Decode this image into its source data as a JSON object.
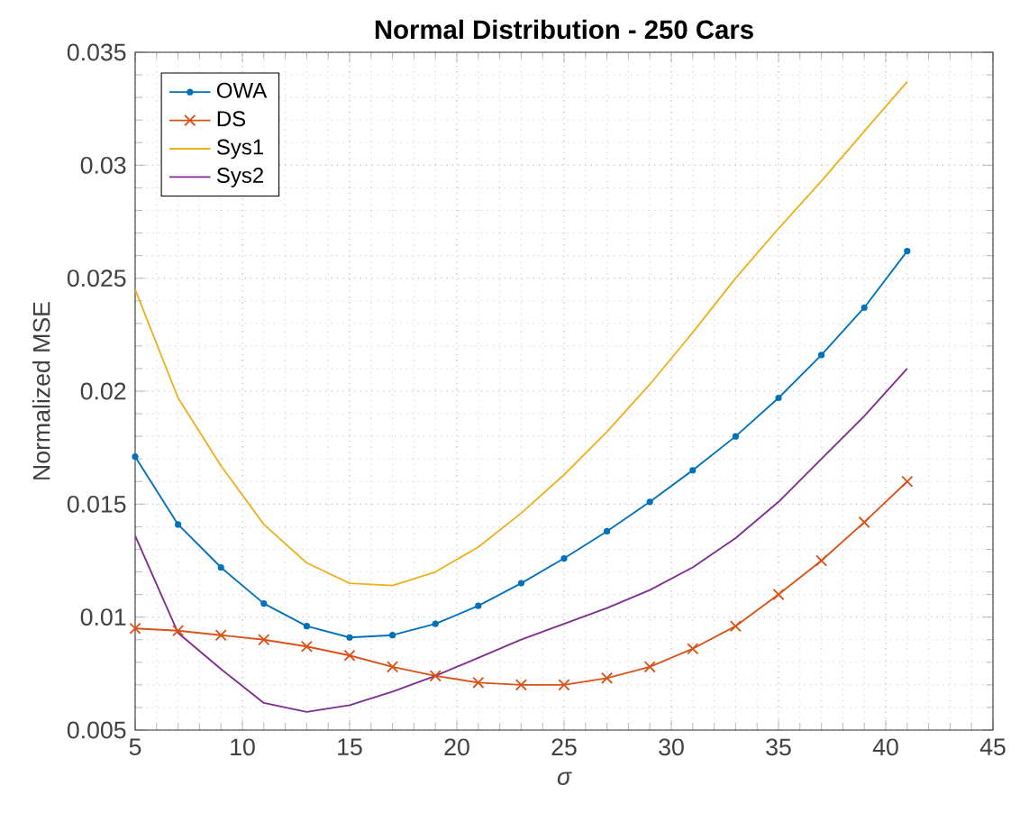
{
  "chart_data": {
    "type": "line",
    "title": "Normal Distribution - 250 Cars",
    "xlabel": "σ",
    "ylabel": "Normalized MSE",
    "x": [
      5,
      7,
      9,
      11,
      13,
      15,
      17,
      19,
      21,
      23,
      25,
      27,
      29,
      31,
      33,
      35,
      37,
      39,
      41
    ],
    "series": [
      {
        "name": "OWA",
        "color": "#0072bd",
        "marker": "circle",
        "values": [
          0.0171,
          0.0141,
          0.0122,
          0.0106,
          0.0096,
          0.0091,
          0.0092,
          0.0097,
          0.0105,
          0.0115,
          0.0126,
          0.0138,
          0.0151,
          0.0165,
          0.018,
          0.0197,
          0.0216,
          0.0237,
          0.0262
        ]
      },
      {
        "name": "DS",
        "color": "#d95319",
        "marker": "cross",
        "values": [
          0.0095,
          0.0094,
          0.0092,
          0.009,
          0.0087,
          0.0083,
          0.0078,
          0.0074,
          0.0071,
          0.007,
          0.007,
          0.0073,
          0.0078,
          0.0086,
          0.0096,
          0.011,
          0.0125,
          0.0142,
          0.016
        ]
      },
      {
        "name": "Sys1",
        "color": "#edb120",
        "marker": "none",
        "values": [
          0.0245,
          0.0197,
          0.0167,
          0.0141,
          0.0124,
          0.0115,
          0.0114,
          0.012,
          0.0131,
          0.0146,
          0.0163,
          0.0182,
          0.0203,
          0.0226,
          0.025,
          0.0272,
          0.0293,
          0.0315,
          0.0337
        ]
      },
      {
        "name": "Sys2",
        "color": "#7e2f8e",
        "marker": "none",
        "values": [
          0.0136,
          0.0093,
          0.0077,
          0.0062,
          0.0058,
          0.0061,
          0.0067,
          0.0074,
          0.0082,
          0.009,
          0.0097,
          0.0104,
          0.0112,
          0.0122,
          0.0135,
          0.0151,
          0.017,
          0.0189,
          0.021
        ]
      }
    ],
    "xlim": [
      5,
      45
    ],
    "xticks": [
      5,
      10,
      15,
      20,
      25,
      30,
      35,
      40,
      45
    ],
    "ylim": [
      0.005,
      0.035
    ],
    "yticks": [
      0.005,
      0.01,
      0.015,
      0.02,
      0.025,
      0.03,
      0.035
    ],
    "grid": true,
    "legend": "top left",
    "line_style": "solid"
  }
}
